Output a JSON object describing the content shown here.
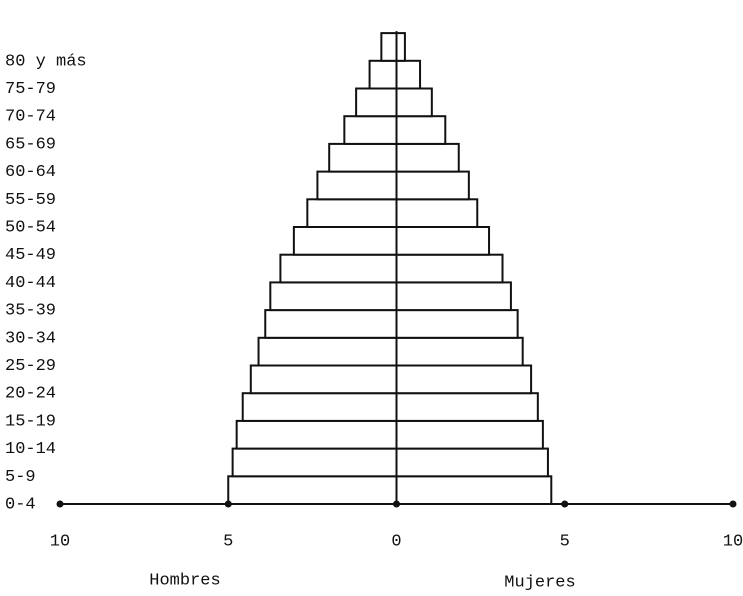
{
  "chart_data": {
    "type": "pyramid",
    "categories": [
      "0-4",
      "5-9",
      "10-14",
      "15-19",
      "20-24",
      "25-29",
      "30-34",
      "35-39",
      "40-44",
      "45-49",
      "50-54",
      "55-59",
      "60-64",
      "65-69",
      "70-74",
      "75-79",
      "80 y más"
    ],
    "series": [
      {
        "name": "Hombres",
        "color": "#ffffff",
        "values": [
          5.0,
          4.87,
          4.75,
          4.57,
          4.33,
          4.1,
          3.9,
          3.75,
          3.45,
          3.05,
          2.65,
          2.35,
          2.0,
          1.55,
          1.2,
          0.8,
          0.45
        ]
      },
      {
        "name": "Mujeres",
        "color": "#ffffff",
        "values": [
          4.6,
          4.5,
          4.35,
          4.2,
          4.0,
          3.75,
          3.6,
          3.4,
          3.15,
          2.75,
          2.4,
          2.15,
          1.85,
          1.45,
          1.05,
          0.7,
          0.25
        ]
      }
    ],
    "xlim": [
      -10,
      10
    ],
    "xticks": [
      {
        "value": -10,
        "label": "10"
      },
      {
        "value": -5,
        "label": "5"
      },
      0,
      5,
      10
    ]
  }
}
